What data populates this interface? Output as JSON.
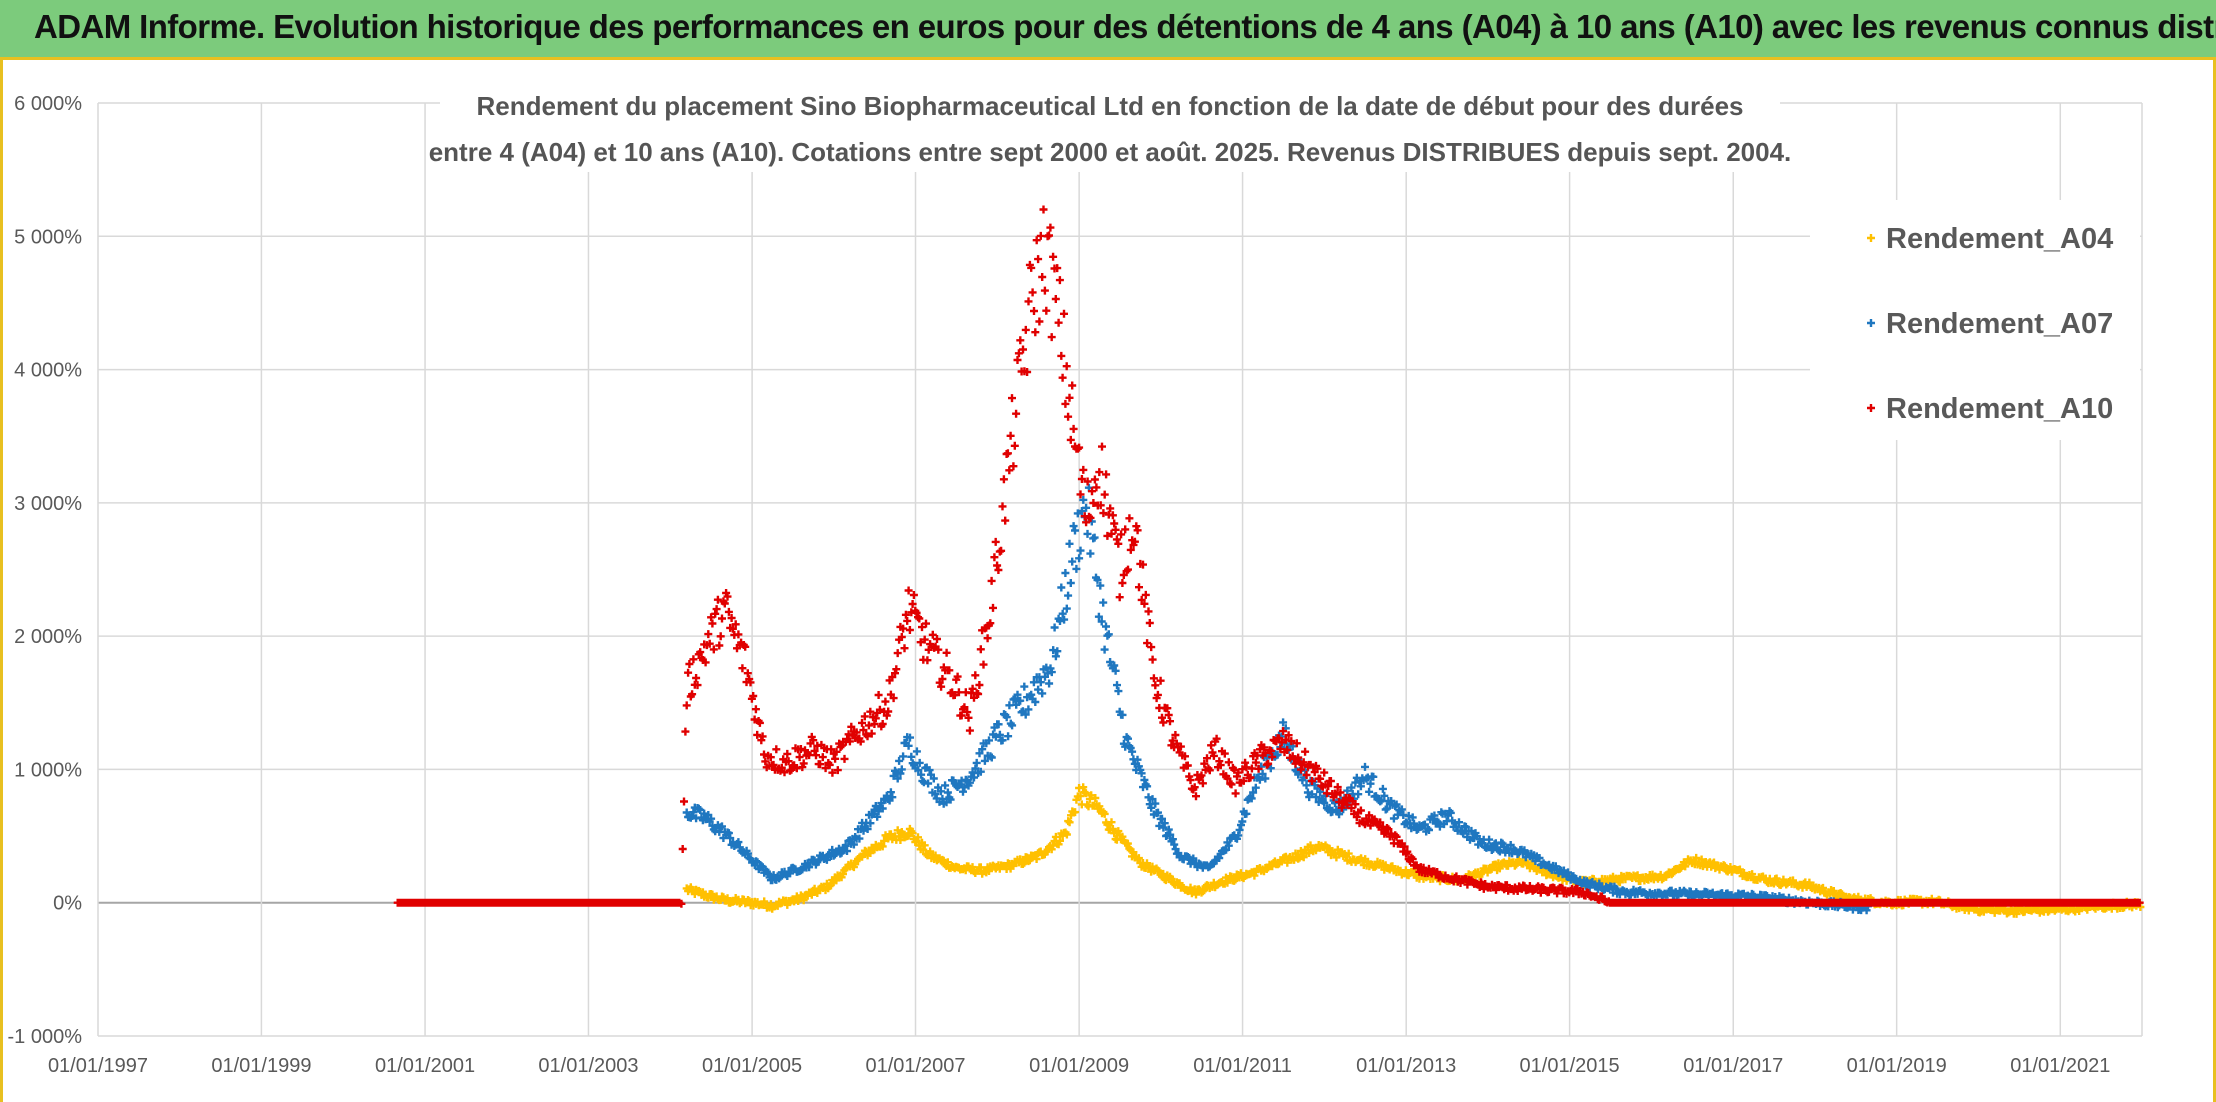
{
  "banner": {
    "title": "ADAM Informe. Evolution historique des performances en euros pour des détentions de 4 ans (A04) à 10 ans (A10) avec les revenus connus distribués",
    "background": "#7ccb7c",
    "accent": "#e8c020"
  },
  "chart_data": {
    "type": "scatter",
    "title_lines": [
      "Rendement du placement Sino Biopharmaceutical Ltd en fonction de la date de début pour des durées",
      "entre 4 (A04) et 10 ans (A10). Cotations entre sept 2000 et août. 2025. Revenus DISTRIBUES depuis sept. 2004."
    ],
    "xlabel": "",
    "ylabel": "",
    "x_tick_labels": [
      "01/01/1997",
      "01/01/1999",
      "01/01/2001",
      "01/01/2003",
      "01/01/2005",
      "01/01/2007",
      "01/01/2009",
      "01/01/2011",
      "01/01/2013",
      "01/01/2015",
      "01/01/2017",
      "01/01/2019",
      "01/01/2021"
    ],
    "xlim": [
      "1997-01-01",
      "2022-01-01"
    ],
    "y_tick_labels": [
      "-1 000%",
      "0%",
      "1 000%",
      "2 000%",
      "3 000%",
      "4 000%",
      "5 000%",
      "6 000%"
    ],
    "ylim": [
      -1000,
      6000
    ],
    "y_unit": "%",
    "grid": true,
    "legend_position": "top-right",
    "marker": "+",
    "series": [
      {
        "name": "Rendement_A04",
        "color": "#ffc000",
        "points": [
          [
            "2004-03-15",
            100
          ],
          [
            "2004-06-01",
            60
          ],
          [
            "2004-09-01",
            20
          ],
          [
            "2005-01-01",
            0
          ],
          [
            "2005-04-01",
            -20
          ],
          [
            "2005-08-01",
            30
          ],
          [
            "2005-12-01",
            120
          ],
          [
            "2006-03-01",
            250
          ],
          [
            "2006-06-01",
            380
          ],
          [
            "2006-09-01",
            480
          ],
          [
            "2006-12-01",
            540
          ],
          [
            "2007-03-01",
            360
          ],
          [
            "2007-07-01",
            260
          ],
          [
            "2007-11-01",
            240
          ],
          [
            "2008-03-01",
            280
          ],
          [
            "2008-07-01",
            350
          ],
          [
            "2008-11-01",
            520
          ],
          [
            "2009-01-01",
            820
          ],
          [
            "2009-04-01",
            700
          ],
          [
            "2009-07-01",
            480
          ],
          [
            "2009-10-01",
            300
          ],
          [
            "2010-03-01",
            160
          ],
          [
            "2010-06-01",
            80
          ],
          [
            "2010-10-01",
            160
          ],
          [
            "2011-03-01",
            230
          ],
          [
            "2011-08-01",
            330
          ],
          [
            "2011-12-01",
            420
          ],
          [
            "2012-04-01",
            350
          ],
          [
            "2012-09-01",
            280
          ],
          [
            "2013-03-01",
            200
          ],
          [
            "2013-09-01",
            170
          ],
          [
            "2014-03-01",
            280
          ],
          [
            "2014-06-01",
            300
          ],
          [
            "2014-10-01",
            220
          ],
          [
            "2015-03-01",
            150
          ],
          [
            "2015-09-01",
            180
          ],
          [
            "2016-03-01",
            200
          ],
          [
            "2016-07-01",
            320
          ],
          [
            "2016-12-01",
            260
          ],
          [
            "2017-06-01",
            170
          ],
          [
            "2017-12-01",
            130
          ],
          [
            "2018-06-01",
            30
          ],
          [
            "2018-12-01",
            0
          ],
          [
            "2019-06-01",
            10
          ],
          [
            "2020-01-01",
            -50
          ],
          [
            "2020-06-01",
            -60
          ],
          [
            "2021-01-01",
            -50
          ],
          [
            "2021-06-01",
            -30
          ],
          [
            "2021-12-31",
            -10
          ]
        ]
      },
      {
        "name": "Rendement_A07",
        "color": "#1f77c0",
        "points": [
          [
            "2004-03-15",
            680
          ],
          [
            "2004-06-01",
            640
          ],
          [
            "2004-09-01",
            520
          ],
          [
            "2005-01-01",
            320
          ],
          [
            "2005-04-01",
            180
          ],
          [
            "2005-08-01",
            260
          ],
          [
            "2005-12-01",
            350
          ],
          [
            "2006-03-01",
            420
          ],
          [
            "2006-06-01",
            600
          ],
          [
            "2006-09-01",
            780
          ],
          [
            "2006-12-01",
            1200
          ],
          [
            "2007-02-01",
            1000
          ],
          [
            "2007-05-01",
            800
          ],
          [
            "2007-09-01",
            950
          ],
          [
            "2008-01-01",
            1250
          ],
          [
            "2008-05-01",
            1500
          ],
          [
            "2008-09-01",
            1800
          ],
          [
            "2008-12-01",
            2600
          ],
          [
            "2009-02-01",
            3000
          ],
          [
            "2009-05-01",
            2000
          ],
          [
            "2009-08-01",
            1200
          ],
          [
            "2009-12-01",
            700
          ],
          [
            "2010-04-01",
            350
          ],
          [
            "2010-08-01",
            250
          ],
          [
            "2010-12-01",
            500
          ],
          [
            "2011-03-01",
            900
          ],
          [
            "2011-07-01",
            1250
          ],
          [
            "2011-11-01",
            850
          ],
          [
            "2012-03-01",
            700
          ],
          [
            "2012-07-01",
            950
          ],
          [
            "2012-11-01",
            700
          ],
          [
            "2013-03-01",
            550
          ],
          [
            "2013-07-01",
            650
          ],
          [
            "2013-12-01",
            450
          ],
          [
            "2014-05-01",
            400
          ],
          [
            "2014-09-01",
            300
          ],
          [
            "2015-03-01",
            150
          ],
          [
            "2015-09-01",
            80
          ],
          [
            "2016-03-01",
            70
          ],
          [
            "2016-09-01",
            60
          ],
          [
            "2017-03-01",
            50
          ],
          [
            "2017-09-01",
            20
          ],
          [
            "2018-03-01",
            -10
          ],
          [
            "2018-09-01",
            -40
          ]
        ]
      },
      {
        "name": "Rendement_A10",
        "color": "#e00000",
        "points": [
          [
            "2000-09-01",
            0
          ],
          [
            "2001-06-01",
            0
          ],
          [
            "2002-06-01",
            0
          ],
          [
            "2003-06-01",
            0
          ],
          [
            "2004-02-20",
            0
          ],
          [
            "2004-03-15",
            1600
          ],
          [
            "2004-06-01",
            1900
          ],
          [
            "2004-09-01",
            2200
          ],
          [
            "2004-12-01",
            1800
          ],
          [
            "2005-03-01",
            1100
          ],
          [
            "2005-06-01",
            1050
          ],
          [
            "2005-10-01",
            1150
          ],
          [
            "2006-01-01",
            1050
          ],
          [
            "2006-05-01",
            1300
          ],
          [
            "2006-09-01",
            1500
          ],
          [
            "2006-12-01",
            2200
          ],
          [
            "2007-03-01",
            1900
          ],
          [
            "2007-06-01",
            1700
          ],
          [
            "2007-09-01",
            1400
          ],
          [
            "2007-12-01",
            2200
          ],
          [
            "2008-03-01",
            3400
          ],
          [
            "2008-06-01",
            4500
          ],
          [
            "2008-08-01",
            4900
          ],
          [
            "2008-10-01",
            4400
          ],
          [
            "2008-12-01",
            3600
          ],
          [
            "2009-02-01",
            2900
          ],
          [
            "2009-04-01",
            3300
          ],
          [
            "2009-07-01",
            2500
          ],
          [
            "2009-09-01",
            2900
          ],
          [
            "2009-12-01",
            1700
          ],
          [
            "2010-03-01",
            1200
          ],
          [
            "2010-06-01",
            850
          ],
          [
            "2010-09-01",
            1150
          ],
          [
            "2010-12-01",
            900
          ],
          [
            "2011-04-01",
            1100
          ],
          [
            "2011-07-01",
            1200
          ],
          [
            "2011-11-01",
            1000
          ],
          [
            "2012-03-01",
            800
          ],
          [
            "2012-07-01",
            620
          ],
          [
            "2012-11-01",
            500
          ],
          [
            "2013-03-01",
            250
          ],
          [
            "2013-08-01",
            180
          ],
          [
            "2014-01-01",
            120
          ],
          [
            "2014-08-01",
            100
          ],
          [
            "2015-03-01",
            80
          ],
          [
            "2015-07-01",
            0
          ],
          [
            "2016-06-01",
            0
          ],
          [
            "2017-06-01",
            0
          ],
          [
            "2018-06-01",
            0
          ],
          [
            "2019-06-01",
            0
          ],
          [
            "2020-06-01",
            0
          ],
          [
            "2021-06-01",
            0
          ],
          [
            "2021-12-31",
            0
          ]
        ]
      }
    ]
  }
}
